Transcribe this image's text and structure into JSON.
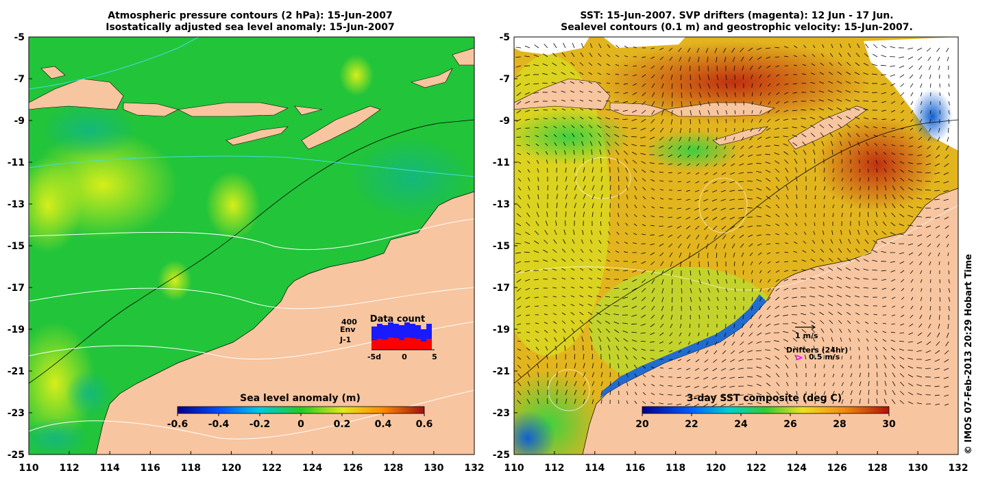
{
  "left_panel": {
    "title_line1": "Atmospheric pressure contours (2 hPa): 15-Jun-2007",
    "title_line2": "Isostatically adjusted sea level anomaly: 15-Jun-2007",
    "colorbar": {
      "label": "Sea level anomaly (m)",
      "ticks": [
        "-0.6",
        "-0.4",
        "-0.2",
        "0",
        "0.2",
        "0.4",
        "0.6"
      ],
      "range": [
        -0.6,
        0.6
      ]
    },
    "inset": {
      "title": "Data count",
      "max_label": "400",
      "series_env": "Env",
      "series_j1": "J-1",
      "env_color": "#1a1aff",
      "j1_color": "#ff0000",
      "xticks": [
        "-5d",
        "0",
        "5"
      ]
    }
  },
  "right_panel": {
    "title_line1": "SST: 15-Jun-2007. SVP drifters (magenta): 12 Jun - 17 Jun.",
    "title_line2": "Sealevel contours (0.1 m) and geostrophic velocity: 15-Jun-2007.",
    "colorbar": {
      "label": "3-day SST composite (deg C)",
      "ticks": [
        "20",
        "22",
        "24",
        "26",
        "28",
        "30"
      ],
      "range": [
        20,
        30
      ]
    },
    "legend": {
      "velocity_label": "1 m/s",
      "drifters_label": "Drifters (24hr)",
      "drifter_speed_label": "0.5 m/s",
      "drifter_color": "#ff00ff"
    }
  },
  "axes": {
    "x_ticks": [
      "110",
      "112",
      "114",
      "116",
      "118",
      "120",
      "122",
      "124",
      "126",
      "128",
      "130",
      "132"
    ],
    "y_ticks": [
      "-5",
      "-7",
      "-9",
      "-11",
      "-13",
      "-15",
      "-17",
      "-19",
      "-21",
      "-23",
      "-25"
    ],
    "lon_range": [
      110,
      132
    ],
    "lat_range": [
      -25,
      -5
    ]
  },
  "credit": "© IMOS 07-Feb-2013 20:29 Hobart Time",
  "colors": {
    "land": "#f7c59f",
    "ocean_green": "#22c43a",
    "sst_orange": "#f0a020"
  }
}
